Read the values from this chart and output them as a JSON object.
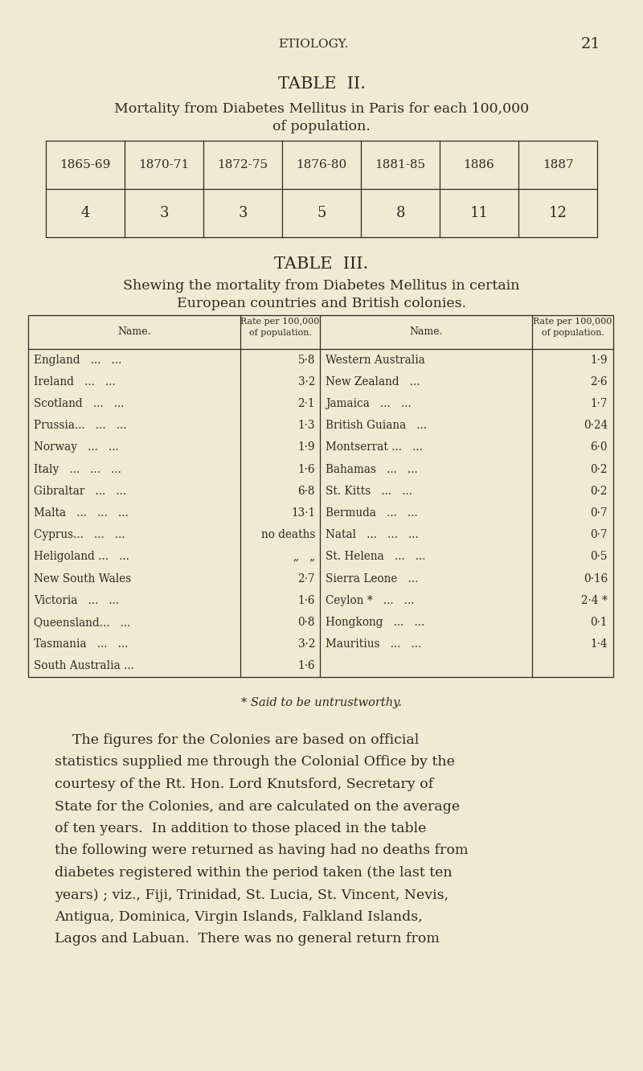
{
  "bg_color": "#f0ead2",
  "text_color": "#2d2b20",
  "page_header": "ETIOLOGY.",
  "page_number": "21",
  "table2_title": "TABLE  II.",
  "table2_subtitle1": "Mortality from Diabetes Mellitus in Paris for each 100,000",
  "table2_subtitle2": "of population.",
  "table2_headers": [
    "1865-69",
    "1870-71",
    "1872-75",
    "1876-80",
    "1881-85",
    "1886",
    "1887"
  ],
  "table2_values": [
    "4",
    "3",
    "3",
    "5",
    "8",
    "11",
    "12"
  ],
  "table3_title": "TABLE  III.",
  "table3_subtitle1": "Shewing the mortality from Diabetes Mellitus in certain",
  "table3_subtitle2": "European countries and British colonies.",
  "table3_left_names": [
    "England   ...   ...",
    "Ireland   ...   ...",
    "Scotland   ...   ...",
    "Prussia...   ...   ...",
    "Norway   ...   ...",
    "Italy   ...   ...   ...",
    "Gibraltar   ...   ...",
    "Malta   ...   ...   ...",
    "Cyprus...   ...   ...",
    "Heligoland ...   ...",
    "New South Wales",
    "Victoria   ...   ...",
    "Queensland...   ...",
    "Tasmania   ...   ...",
    "South Australia ..."
  ],
  "table3_left_rates": [
    "5·8",
    "3·2",
    "2·1",
    "1·3",
    "1·9",
    "1·6",
    "6·8",
    "13·1",
    "no deaths",
    "„   „",
    "2·7",
    "1·6",
    "0·8",
    "3·2",
    "1·6"
  ],
  "table3_right_names": [
    "Western Australia",
    "New Zealand   ...",
    "Jamaica   ...   ...",
    "British Guiana   ...",
    "Montserrat ...   ...",
    "Bahamas   ...   ...",
    "St. Kitts   ...   ...",
    "Bermuda   ...   ...",
    "Natal   ...   ...   ...",
    "St. Helena   ...   ...",
    "Sierra Leone   ...",
    "Ceylon *   ...   ...",
    "Hongkong   ...   ...",
    "Mauritius   ...   ...",
    ""
  ],
  "table3_right_rates": [
    "1·9",
    "2·6",
    "1·7",
    "0·24",
    "6·0",
    "0·2",
    "0·2",
    "0·7",
    "0·7",
    "0·5",
    "0·16",
    "2·4 *",
    "0·1",
    "1·4",
    ""
  ],
  "footnote": "* Said to be untrustworthy.",
  "para_line1": "The figures for the Colonies are based on official",
  "para_line2": "statistics supplied me through the Colonial Office by the",
  "para_line3": "courtesy of the Rt. Hon. Lord Knutsford, Secretary of",
  "para_line4": "State for the Colonies, and are calculated on the average",
  "para_line5": "of ten years.  In addition to those placed in the table",
  "para_line6": "the following were returned as having had no deaths from",
  "para_line7": "diabetes registered within the period taken (the last ten",
  "para_line8": "years) ; viz., Fiji, Trinidad, St. Lucia, St. Vincent, Nevis,",
  "para_line9": "Antigua, Dominica, Virgin Islands, Falkland Islands,",
  "para_line10": "Lagos and Labuan.  There was no general return from"
}
